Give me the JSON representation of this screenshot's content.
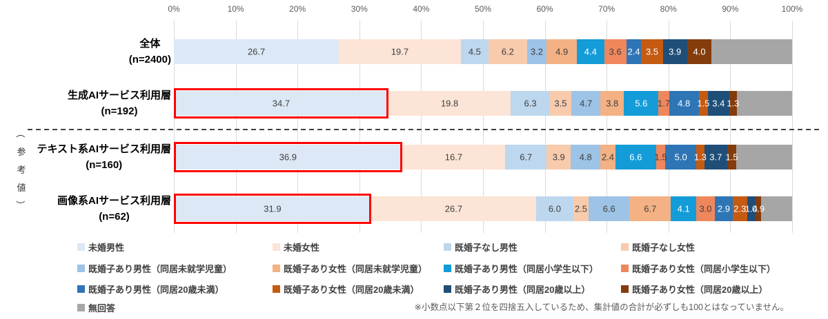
{
  "chart_data": {
    "type": "bar",
    "stacked": true,
    "orientation": "horizontal",
    "unit": "%",
    "grid": true,
    "axis_ticks": [
      "0%",
      "10%",
      "20%",
      "30%",
      "40%",
      "50%",
      "60%",
      "70%",
      "80%",
      "90%",
      "100%"
    ],
    "xlim": [
      0,
      100
    ],
    "categories": [
      {
        "label": "全体",
        "n": "(n=2400)",
        "highlighted": false
      },
      {
        "label": "生成AIサービス利用層",
        "n": "(n=192)",
        "highlighted": true
      },
      {
        "label": "テキスト系AIサービス利用層",
        "n": "(n=160)",
        "highlighted": true
      },
      {
        "label": "画像系AIサービス利用層",
        "n": "(n=62)",
        "highlighted": true
      }
    ],
    "series": [
      {
        "name": "未婚男性",
        "color": "#DCE8F5",
        "label_color": "#3F3F3F",
        "values": [
          26.7,
          34.7,
          36.9,
          31.9
        ]
      },
      {
        "name": "未婚女性",
        "color": "#FCE4D6",
        "label_color": "#3F3F3F",
        "values": [
          19.7,
          19.8,
          16.7,
          26.7
        ]
      },
      {
        "name": "既婚子なし男性",
        "color": "#BDD7EE",
        "label_color": "#3F3F3F",
        "values": [
          4.5,
          6.3,
          6.7,
          6.0
        ]
      },
      {
        "name": "既婚子なし女性",
        "color": "#F8CBAD",
        "label_color": "#3F3F3F",
        "values": [
          6.2,
          3.5,
          3.9,
          2.5
        ]
      },
      {
        "name": "既婚子あり男性（同居未就学児童）",
        "color": "#9DC3E6",
        "label_color": "#3F3F3F",
        "values": [
          3.2,
          4.7,
          4.8,
          6.6
        ]
      },
      {
        "name": "既婚子あり女性（同居未就学児童）",
        "color": "#F4B183",
        "label_color": "#3F3F3F",
        "values": [
          4.9,
          3.8,
          2.4,
          6.7
        ]
      },
      {
        "name": "既婚子あり男性（同居小学生以下）",
        "color": "#149CD8",
        "label_color": "#FFFFFF",
        "values": [
          4.4,
          5.6,
          6.6,
          4.1
        ]
      },
      {
        "name": "既婚子あり女性（同居小学生以下）",
        "color": "#F0875C",
        "label_color": "#3F3F3F",
        "values": [
          3.6,
          1.7,
          1.5,
          3.0
        ]
      },
      {
        "name": "既婚子あり男性（同居20歳未満）",
        "color": "#2E75B6",
        "label_color": "#FFFFFF",
        "values": [
          2.4,
          4.8,
          5.0,
          2.9
        ]
      },
      {
        "name": "既婚子あり女性（同居20歳未満）",
        "color": "#C55A11",
        "label_color": "#FFFFFF",
        "values": [
          3.5,
          1.5,
          1.3,
          2.3
        ]
      },
      {
        "name": "既婚子あり男性（同居20歳以上）",
        "color": "#1F4E79",
        "label_color": "#FFFFFF",
        "values": [
          3.9,
          3.4,
          3.7,
          1.4
        ]
      },
      {
        "name": "既婚子あり女性（同居20歳以上）",
        "color": "#843C0C",
        "label_color": "#FFFFFF",
        "values": [
          4.0,
          1.3,
          1.5,
          0.9
        ]
      },
      {
        "name": "無回答",
        "color": "#A6A6A6",
        "label_color": null,
        "labeled": false,
        "values": [
          13.0,
          8.9,
          9.0,
          5.0
        ]
      }
    ],
    "highlight_color": "#FF0000",
    "reference_label_chars": [
      "（",
      "参",
      "考",
      "値",
      "）"
    ],
    "legend_position": "bottom",
    "note": "※小数点以下第２位を四捨五入しているため、集計値の合計が必ずしも100とはなっていません。"
  }
}
